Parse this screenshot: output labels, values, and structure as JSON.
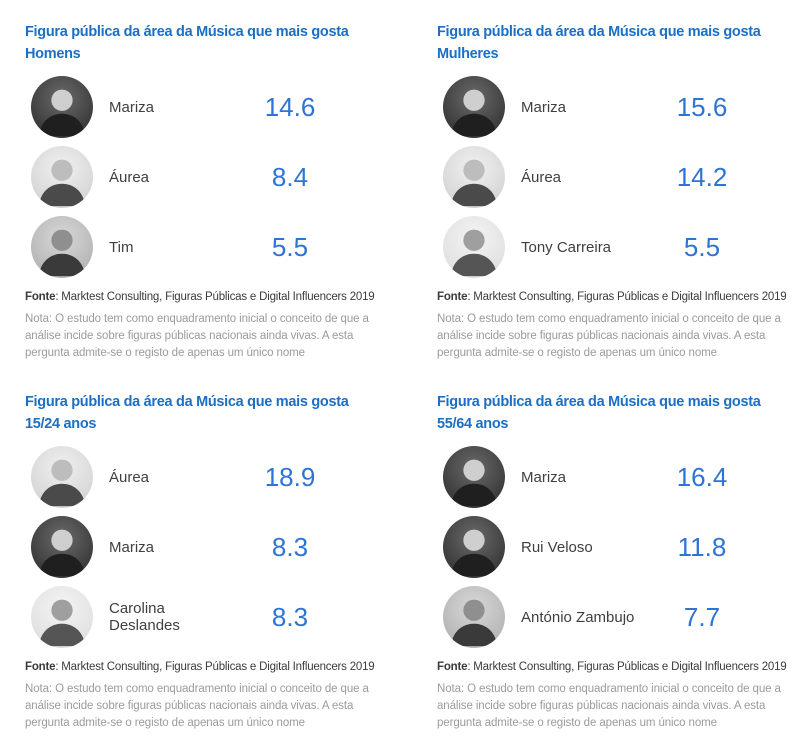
{
  "colors": {
    "title_blue": "#1b6fc4",
    "value_blue": "#2e74d4",
    "name_gray": "#3f3f3f",
    "note_gray": "#9b9b9b"
  },
  "footer": {
    "fonte_label": "Fonte",
    "fonte_text": ": Marktest Consulting, Figuras Públicas e Digital Influencers 2019",
    "nota": "Nota: O estudo tem como enquadramento inicial o conceito de que a análise incide sobre figuras públicas nacionais ainda vivas. A esta pergunta admite-se o registo de apenas um único nome"
  },
  "panels": [
    {
      "title": "Figura pública da área da Música que mais gosta",
      "segment": "Homens",
      "rows": [
        {
          "name": "Mariza",
          "value": "14.6"
        },
        {
          "name": "Áurea",
          "value": "8.4"
        },
        {
          "name": "Tim",
          "value": "5.5"
        }
      ]
    },
    {
      "title": "Figura pública da área da Música que mais gosta",
      "segment": "Mulheres",
      "rows": [
        {
          "name": "Mariza",
          "value": "15.6"
        },
        {
          "name": "Áurea",
          "value": "14.2"
        },
        {
          "name": "Tony Carreira",
          "value": "5.5"
        }
      ]
    },
    {
      "title": "Figura pública da área da Música que mais gosta",
      "segment": "15/24 anos",
      "rows": [
        {
          "name": "Áurea",
          "value": "18.9"
        },
        {
          "name": "Mariza",
          "value": "8.3"
        },
        {
          "name": "Carolina Deslandes",
          "value": "8.3"
        }
      ]
    },
    {
      "title": "Figura pública da área da Música que mais gosta",
      "segment": "55/64 anos",
      "rows": [
        {
          "name": "Mariza",
          "value": "16.4"
        },
        {
          "name": "Rui Veloso",
          "value": "11.8"
        },
        {
          "name": "António Zambujo",
          "value": "7.7"
        }
      ]
    }
  ],
  "chart_data": [
    {
      "type": "table",
      "title": "Figura pública da área da Música que mais gosta — Homens",
      "categories": [
        "Mariza",
        "Áurea",
        "Tim"
      ],
      "values": [
        14.6,
        8.4,
        5.5
      ]
    },
    {
      "type": "table",
      "title": "Figura pública da área da Música que mais gosta — Mulheres",
      "categories": [
        "Mariza",
        "Áurea",
        "Tony Carreira"
      ],
      "values": [
        15.6,
        14.2,
        5.5
      ]
    },
    {
      "type": "table",
      "title": "Figura pública da área da Música que mais gosta — 15/24 anos",
      "categories": [
        "Áurea",
        "Mariza",
        "Carolina Deslandes"
      ],
      "values": [
        18.9,
        8.3,
        8.3
      ]
    },
    {
      "type": "table",
      "title": "Figura pública da área da Música que mais gosta — 55/64 anos",
      "categories": [
        "Mariza",
        "Rui Veloso",
        "António Zambujo"
      ],
      "values": [
        16.4,
        11.8,
        7.7
      ]
    }
  ]
}
